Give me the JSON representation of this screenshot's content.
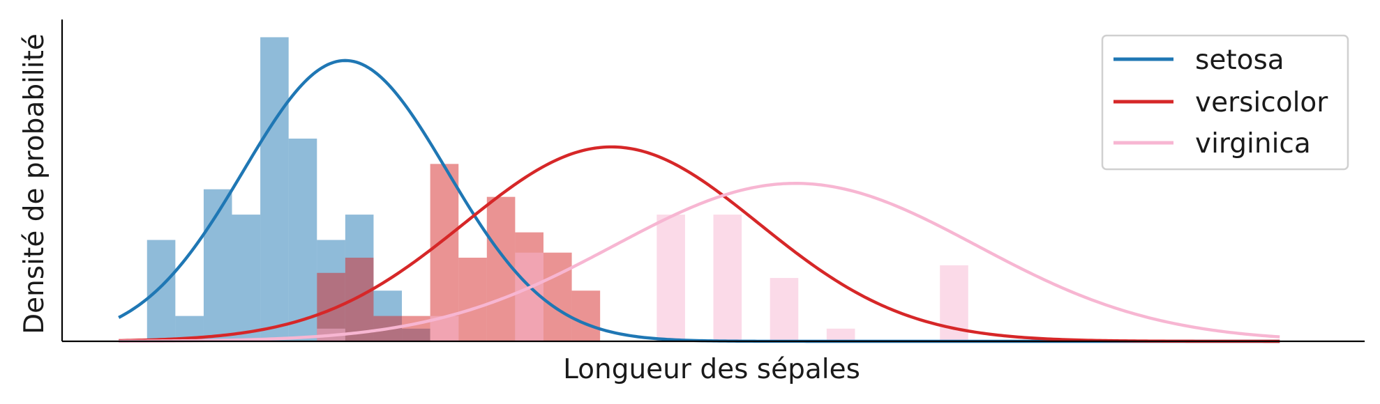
{
  "chart_data": {
    "type": "histogram",
    "title": "",
    "xlabel": "Longueur des sépales",
    "ylabel": "Densité de probabilité",
    "xlim": [
      4.0,
      8.6
    ],
    "ylim": [
      0,
      1.27
    ],
    "x_ticks_visible": false,
    "y_ticks_visible": false,
    "grid": false,
    "legend_position": "top-right",
    "bin_width": 0.1,
    "series": [
      {
        "name": "setosa",
        "color": "#1f77b4",
        "hist_alpha": 0.5,
        "bins": [
          [
            4.3,
            0.4
          ],
          [
            4.4,
            0.1
          ],
          [
            4.5,
            0.6
          ],
          [
            4.6,
            0.5
          ],
          [
            4.7,
            1.2
          ],
          [
            4.8,
            0.8
          ],
          [
            4.9,
            0.4
          ],
          [
            5.0,
            0.5
          ],
          [
            5.1,
            0.2
          ],
          [
            5.2,
            0.05
          ]
        ],
        "normal_fit": {
          "mean": 5.0,
          "std": 0.36
        }
      },
      {
        "name": "versicolor",
        "color": "#d62728",
        "hist_alpha": 0.5,
        "bins": [
          [
            4.9,
            0.27
          ],
          [
            5.0,
            0.33
          ],
          [
            5.1,
            0.1
          ],
          [
            5.2,
            0.1
          ],
          [
            5.3,
            0.7
          ],
          [
            5.4,
            0.33
          ],
          [
            5.5,
            0.57
          ],
          [
            5.6,
            0.43
          ],
          [
            5.7,
            0.35
          ],
          [
            5.8,
            0.2
          ]
        ],
        "normal_fit": {
          "mean": 5.94,
          "std": 0.52
        }
      },
      {
        "name": "virginica",
        "color": "#f7b6d2",
        "hist_alpha": 0.5,
        "bins": [
          [
            4.9,
            0.05
          ],
          [
            5.3,
            0.1
          ],
          [
            5.6,
            0.35
          ],
          [
            6.1,
            0.5
          ],
          [
            6.3,
            0.5
          ],
          [
            6.5,
            0.25
          ],
          [
            6.7,
            0.05
          ],
          [
            7.1,
            0.3
          ]
        ],
        "normal_fit": {
          "mean": 6.59,
          "std": 0.64
        }
      }
    ]
  }
}
